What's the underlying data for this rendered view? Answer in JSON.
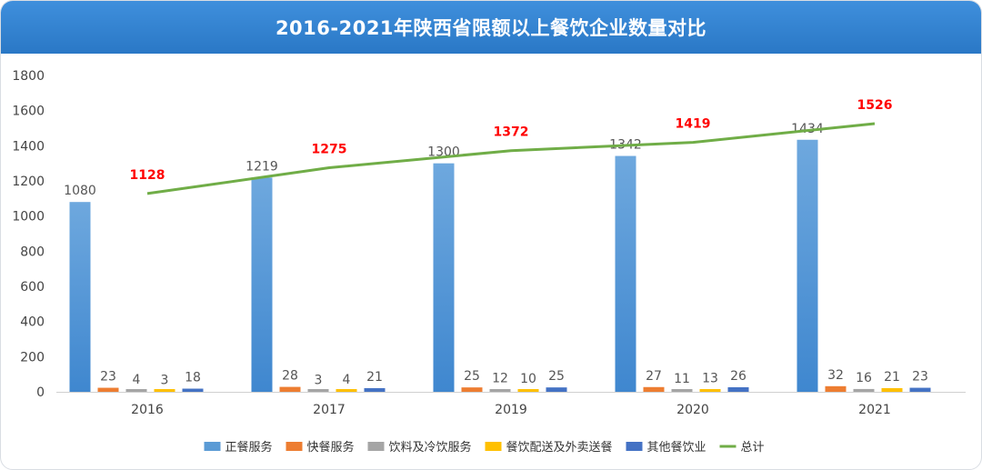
{
  "title": "2016-2021年陕西省限额以上餐饮企业数量对比",
  "chart_data": {
    "type": "bar",
    "categories": [
      "2016",
      "2017",
      "2019",
      "2020",
      "2021"
    ],
    "ylim": [
      0,
      1800
    ],
    "yticks": [
      0,
      200,
      400,
      600,
      800,
      1000,
      1200,
      1400,
      1600,
      1800
    ],
    "grid": false,
    "legend_position": "bottom",
    "series": [
      {
        "name": "正餐服务",
        "type": "bar",
        "color": "#5b9bd5",
        "values": [
          1080,
          1219,
          1300,
          1342,
          1434
        ]
      },
      {
        "name": "快餐服务",
        "type": "bar",
        "color": "#ed7d31",
        "values": [
          23,
          28,
          25,
          27,
          32
        ]
      },
      {
        "name": "饮料及冷饮服务",
        "type": "bar",
        "color": "#a5a5a5",
        "values": [
          4,
          3,
          12,
          11,
          16
        ]
      },
      {
        "name": "餐饮配送及外卖送餐",
        "type": "bar",
        "color": "#ffc000",
        "values": [
          3,
          4,
          10,
          13,
          21
        ]
      },
      {
        "name": "其他餐饮业",
        "type": "bar",
        "color": "#4472c4",
        "values": [
          18,
          21,
          25,
          26,
          23
        ]
      },
      {
        "name": "总计",
        "type": "line",
        "color": "#70ad47",
        "label_color": "#ff0000",
        "values": [
          1128,
          1275,
          1372,
          1419,
          1526
        ]
      }
    ]
  }
}
